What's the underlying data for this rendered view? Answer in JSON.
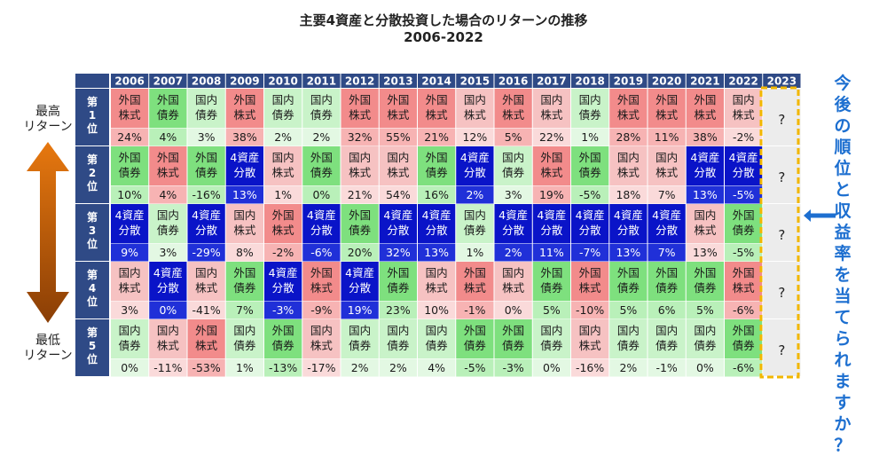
{
  "title": "主要4資産と分散投資した場合のリターンの推移",
  "subtitle": "2006-2022",
  "side_labels": {
    "top": "最高\nリターン",
    "bottom": "最低\nリターン"
  },
  "question": "今後の順位と収益率を当てられますか？",
  "colors": {
    "header_bg": "#2f4a86",
    "header_text": "#ffffff",
    "rank_bg": "#2f4a86",
    "外国株式": {
      "top": "#f28b8b",
      "bottom": "#f7b3b3"
    },
    "外国債券": {
      "top": "#7ee07e",
      "bottom": "#b9f0b9"
    },
    "国内株式": {
      "top": "#f6c2c2",
      "bottom": "#fadada"
    },
    "国内債券": {
      "top": "#c9f3c9",
      "bottom": "#e3f8e3"
    },
    "4資産分散": {
      "top": "#0a14c8",
      "bottom": "#2030d8"
    },
    "unknown": "#ececec",
    "highlight": "#f2b700",
    "arrow_top": "#e7780f",
    "arrow_bottom": "#8a3e05",
    "question_text": "#1d6fd0"
  },
  "chart_data": {
    "type": "table",
    "title": "主要4資産と分散投資した場合のリターンの推移",
    "subtitle": "2006-2022",
    "years": [
      "2006",
      "2007",
      "2008",
      "2009",
      "2010",
      "2011",
      "2012",
      "2013",
      "2014",
      "2015",
      "2016",
      "2017",
      "2018",
      "2019",
      "2020",
      "2021",
      "2022",
      "2023"
    ],
    "rank_labels": [
      "第\n1\n位",
      "第\n2\n位",
      "第\n3\n位",
      "第\n4\n位",
      "第\n5\n位"
    ],
    "cells": [
      [
        [
          "外国\n株式",
          "24%"
        ],
        [
          "外国\n債券",
          "4%"
        ],
        [
          "国内\n債券",
          "3%"
        ],
        [
          "外国\n株式",
          "38%"
        ],
        [
          "国内\n債券",
          "2%"
        ],
        [
          "国内\n債券",
          "2%"
        ],
        [
          "外国\n株式",
          "32%"
        ],
        [
          "外国\n株式",
          "55%"
        ],
        [
          "外国\n株式",
          "21%"
        ],
        [
          "国内\n株式",
          "12%"
        ],
        [
          "外国\n株式",
          "5%"
        ],
        [
          "国内\n株式",
          "22%"
        ],
        [
          "国内\n債券",
          "1%"
        ],
        [
          "外国\n株式",
          "28%"
        ],
        [
          "外国\n株式",
          "11%"
        ],
        [
          "外国\n株式",
          "38%"
        ],
        [
          "国内\n株式",
          "-2%"
        ]
      ],
      [
        [
          "外国\n債券",
          "10%"
        ],
        [
          "外国\n株式",
          "4%"
        ],
        [
          "外国\n債券",
          "-16%"
        ],
        [
          "4資産\n分散",
          "13%"
        ],
        [
          "国内\n株式",
          "1%"
        ],
        [
          "外国\n債券",
          "0%"
        ],
        [
          "国内\n株式",
          "21%"
        ],
        [
          "国内\n株式",
          "54%"
        ],
        [
          "外国\n債券",
          "16%"
        ],
        [
          "4資産\n分散",
          "2%"
        ],
        [
          "国内\n債券",
          "3%"
        ],
        [
          "外国\n株式",
          "19%"
        ],
        [
          "外国\n債券",
          "-5%"
        ],
        [
          "国内\n株式",
          "18%"
        ],
        [
          "国内\n株式",
          "7%"
        ],
        [
          "4資産\n分散",
          "13%"
        ],
        [
          "4資産\n分散",
          "-5%"
        ]
      ],
      [
        [
          "4資産\n分散",
          "9%"
        ],
        [
          "国内\n債券",
          "3%"
        ],
        [
          "4資産\n分散",
          "-29%"
        ],
        [
          "国内\n株式",
          "8%"
        ],
        [
          "外国\n株式",
          "-2%"
        ],
        [
          "4資産\n分散",
          "-6%"
        ],
        [
          "外国\n債券",
          "20%"
        ],
        [
          "4資産\n分散",
          "32%"
        ],
        [
          "4資産\n分散",
          "13%"
        ],
        [
          "国内\n債券",
          "1%"
        ],
        [
          "4資産\n分散",
          "2%"
        ],
        [
          "4資産\n分散",
          "11%"
        ],
        [
          "4資産\n分散",
          "-7%"
        ],
        [
          "4資産\n分散",
          "13%"
        ],
        [
          "4資産\n分散",
          "7%"
        ],
        [
          "国内\n株式",
          "13%"
        ],
        [
          "外国\n債券",
          "-5%"
        ]
      ],
      [
        [
          "国内\n株式",
          "3%"
        ],
        [
          "4資産\n分散",
          "0%"
        ],
        [
          "国内\n株式",
          "-41%"
        ],
        [
          "外国\n債券",
          "7%"
        ],
        [
          "4資産\n分散",
          "-3%"
        ],
        [
          "外国\n株式",
          "-9%"
        ],
        [
          "4資産\n分散",
          "19%"
        ],
        [
          "外国\n債券",
          "23%"
        ],
        [
          "国内\n株式",
          "10%"
        ],
        [
          "外国\n株式",
          "-1%"
        ],
        [
          "国内\n株式",
          "0%"
        ],
        [
          "外国\n債券",
          "5%"
        ],
        [
          "外国\n株式",
          "-10%"
        ],
        [
          "外国\n債券",
          "5%"
        ],
        [
          "外国\n債券",
          "6%"
        ],
        [
          "外国\n債券",
          "5%"
        ],
        [
          "外国\n株式",
          "-6%"
        ]
      ],
      [
        [
          "国内\n債券",
          "0%"
        ],
        [
          "国内\n株式",
          "-11%"
        ],
        [
          "外国\n株式",
          "-53%"
        ],
        [
          "国内\n債券",
          "1%"
        ],
        [
          "外国\n債券",
          "-13%"
        ],
        [
          "国内\n株式",
          "-17%"
        ],
        [
          "国内\n債券",
          "2%"
        ],
        [
          "国内\n債券",
          "2%"
        ],
        [
          "国内\n債券",
          "4%"
        ],
        [
          "外国\n債券",
          "-5%"
        ],
        [
          "外国\n債券",
          "-3%"
        ],
        [
          "国内\n債券",
          "0%"
        ],
        [
          "国内\n株式",
          "-16%"
        ],
        [
          "国内\n債券",
          "2%"
        ],
        [
          "国内\n債券",
          "-1%"
        ],
        [
          "国内\n債券",
          "0%"
        ],
        [
          "外国\n債券",
          "-6%"
        ]
      ]
    ],
    "future": [
      "?",
      "?",
      "?",
      "?",
      "?"
    ]
  }
}
